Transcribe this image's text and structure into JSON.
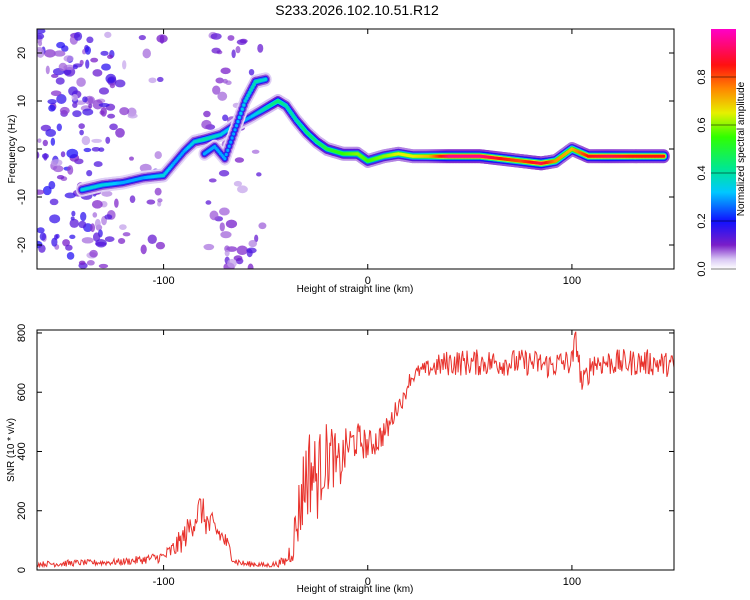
{
  "title": "S233.2026.102.10.51.R12",
  "colors": {
    "signal_line": "#e8322c",
    "axis": "#000000"
  },
  "chart_data": [
    {
      "type": "heatmap",
      "id": "spectrogram",
      "xlabel": "Height of straight line (km)",
      "ylabel": "Frequency (Hz)",
      "xlim": [
        -162,
        150
      ],
      "ylim": [
        -25,
        25
      ],
      "x_ticks": [
        -100,
        0,
        100
      ],
      "x_tick_labels": [
        "-100",
        "0",
        "100"
      ],
      "y_ticks": [
        -20,
        -10,
        0,
        10,
        20
      ],
      "y_tick_labels": [
        "-20",
        "-10",
        "0",
        "10",
        "20"
      ],
      "colorbar": {
        "label": "Normalized spectral amplitude",
        "range": [
          0,
          1
        ],
        "ticks": [
          0,
          0.2,
          0.4,
          0.6,
          0.8
        ],
        "tick_labels": [
          "0.0",
          "0.2",
          "0.4",
          "0.6",
          "0.8"
        ],
        "colormap": "rainbow (violet -> blue -> cyan -> green -> yellow -> red -> magenta)"
      },
      "ridges": [
        {
          "name": "main ridge",
          "points": [
            [
              -140,
              -8.5,
              0.35
            ],
            [
              -130,
              -7.5,
              0.35
            ],
            [
              -120,
              -7,
              0.3
            ],
            [
              -110,
              -6,
              0.3
            ],
            [
              -100,
              -5.5,
              0.35
            ],
            [
              -95,
              -3,
              0.3
            ],
            [
              -90,
              -0.5,
              0.3
            ],
            [
              -85,
              1.5,
              0.35
            ],
            [
              -80,
              2,
              0.4
            ],
            [
              -72,
              3,
              0.35
            ],
            [
              -65,
              5,
              0.3
            ],
            [
              -58,
              6.5,
              0.3
            ],
            [
              -50,
              8.5,
              0.4
            ],
            [
              -44,
              10,
              0.45
            ],
            [
              -40,
              9,
              0.4
            ],
            [
              -35,
              6,
              0.4
            ],
            [
              -30,
              3.5,
              0.45
            ],
            [
              -25,
              1.5,
              0.45
            ],
            [
              -20,
              0,
              0.5
            ],
            [
              -12,
              -1,
              0.55
            ],
            [
              -5,
              -1,
              0.6
            ],
            [
              0,
              -2.5,
              0.55
            ],
            [
              8,
              -1.5,
              0.6
            ],
            [
              15,
              -1,
              0.65
            ],
            [
              22,
              -1.5,
              0.65
            ],
            [
              30,
              -1.5,
              0.7
            ],
            [
              40,
              -1.5,
              0.95
            ],
            [
              55,
              -1.5,
              0.95
            ],
            [
              65,
              -2,
              0.85
            ],
            [
              75,
              -2.5,
              0.8
            ],
            [
              85,
              -3,
              0.9
            ],
            [
              92,
              -2.5,
              0.75
            ],
            [
              100,
              0,
              0.7
            ],
            [
              108,
              -1.5,
              0.85
            ],
            [
              118,
              -1.5,
              0.9
            ],
            [
              130,
              -1.5,
              0.85
            ],
            [
              145,
              -1.5,
              0.85
            ]
          ]
        },
        {
          "name": "secondary ridge",
          "points": [
            [
              -80,
              -1,
              0.3
            ],
            [
              -75,
              0.5,
              0.3
            ],
            [
              -70,
              -2,
              0.3
            ],
            [
              -65,
              4,
              0.3
            ],
            [
              -60,
              10,
              0.35
            ],
            [
              -55,
              14,
              0.4
            ],
            [
              -50,
              14.5,
              0.35
            ]
          ]
        }
      ]
    },
    {
      "type": "line",
      "id": "snr",
      "xlabel": "Height of straight line (km)",
      "ylabel": "SNR (10 * v/v)",
      "xlim": [
        -162,
        150
      ],
      "ylim": [
        0,
        810
      ],
      "x_ticks": [
        -100,
        0,
        100
      ],
      "x_tick_labels": [
        "-100",
        "0",
        "100"
      ],
      "y_ticks": [
        0,
        200,
        400,
        600,
        800
      ],
      "y_tick_labels": [
        "0",
        "200",
        "400",
        "600",
        "800"
      ],
      "series": [
        {
          "name": "SNR",
          "x": [
            -162,
            -150,
            -140,
            -130,
            -120,
            -110,
            -100,
            -95,
            -90,
            -85,
            -82,
            -78,
            -75,
            -70,
            -65,
            -60,
            -55,
            -50,
            -45,
            -40,
            -37,
            -35,
            -32,
            -30,
            -27,
            -25,
            -22,
            -20,
            -17,
            -15,
            -12,
            -10,
            -5,
            0,
            5,
            10,
            15,
            18,
            20,
            25,
            30,
            35,
            40,
            50,
            60,
            70,
            80,
            90,
            95,
            100,
            102,
            105,
            110,
            120,
            130,
            140,
            150
          ],
          "values": [
            20,
            22,
            25,
            25,
            28,
            35,
            45,
            70,
            110,
            170,
            210,
            150,
            140,
            100,
            30,
            20,
            20,
            15,
            20,
            30,
            80,
            150,
            260,
            330,
            340,
            300,
            370,
            380,
            390,
            330,
            380,
            420,
            440,
            420,
            440,
            480,
            560,
            580,
            640,
            670,
            680,
            690,
            700,
            700,
            700,
            700,
            700,
            690,
            700,
            700,
            780,
            620,
            700,
            700,
            700,
            700,
            690
          ],
          "noise": [
            8,
            12,
            10,
            10,
            12,
            15,
            20,
            35,
            45,
            50,
            55,
            55,
            45,
            35,
            15,
            10,
            10,
            8,
            10,
            20,
            60,
            100,
            140,
            160,
            150,
            140,
            130,
            120,
            110,
            100,
            80,
            70,
            60,
            50,
            50,
            40,
            30,
            25,
            25,
            25,
            30,
            40,
            45,
            45,
            45,
            45,
            45,
            45,
            45,
            45,
            45,
            45,
            45,
            45,
            45,
            45,
            40
          ]
        }
      ]
    }
  ]
}
